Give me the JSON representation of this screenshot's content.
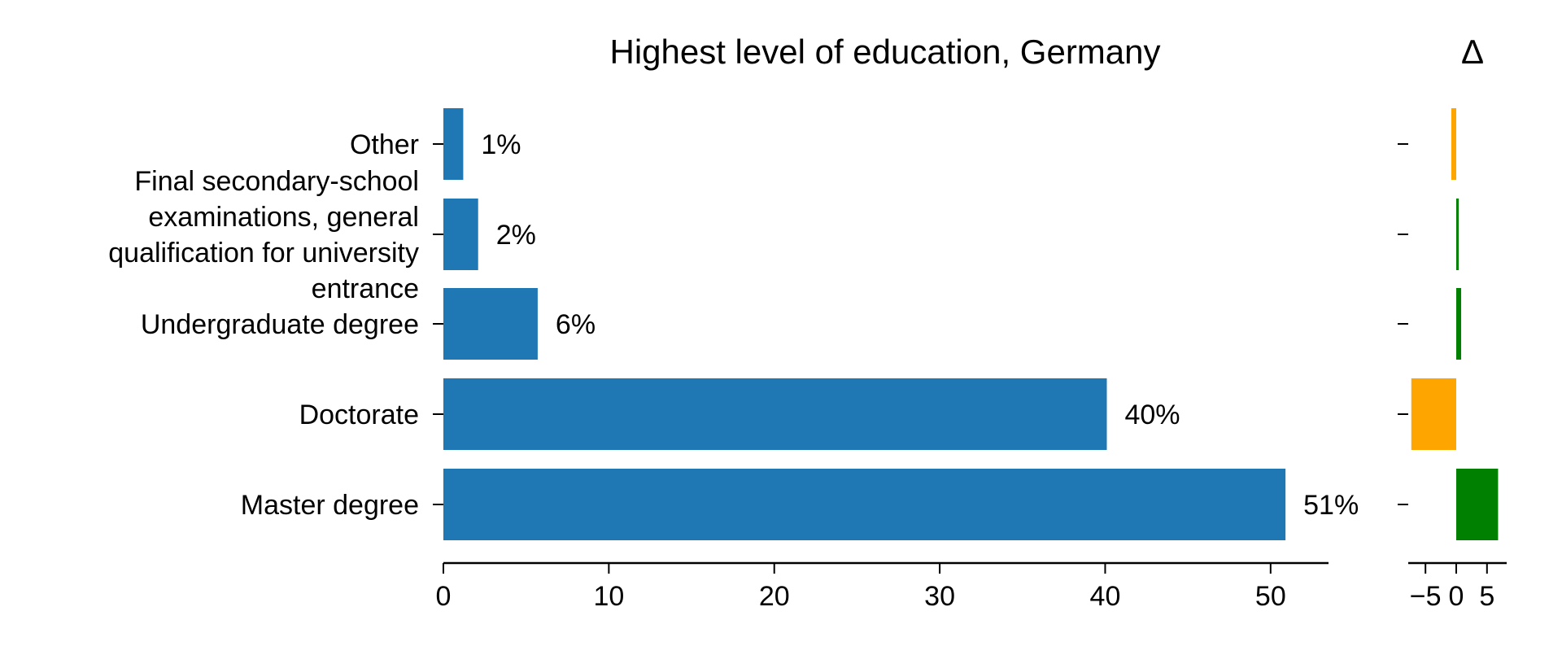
{
  "chart_data": [
    {
      "type": "bar",
      "orientation": "horizontal",
      "title": "Highest level of education, Germany",
      "categories": [
        "Master degree",
        "Doctorate",
        "Undergraduate degree",
        "Final secondary-school examinations, general qualification for university entrance",
        "Other"
      ],
      "category_lines": [
        [
          "Master degree"
        ],
        [
          "Doctorate"
        ],
        [
          "Undergraduate degree"
        ],
        [
          "Final secondary-school",
          "examinations, general",
          "qualification for university",
          "entrance"
        ],
        [
          "Other"
        ]
      ],
      "values": [
        50.9,
        40.1,
        5.7,
        2.1,
        1.2
      ],
      "value_labels": [
        "51%",
        "40%",
        "6%",
        "2%",
        "1%"
      ],
      "xlim": [
        0,
        53.5
      ],
      "xticks": [
        0,
        10,
        20,
        30,
        40,
        50
      ],
      "xtick_labels": [
        "0",
        "10",
        "20",
        "30",
        "40",
        "50"
      ],
      "grid": false,
      "bar_color": "#1f77b4"
    },
    {
      "type": "bar",
      "orientation": "horizontal",
      "title": "Δ",
      "categories": [
        "Master degree",
        "Doctorate",
        "Undergraduate degree",
        "Final secondary-school examinations, general qualification for university entrance",
        "Other"
      ],
      "values": [
        6.8,
        -7.3,
        0.8,
        0.4,
        -0.8
      ],
      "xlim": [
        -7.8,
        8.2
      ],
      "xticks": [
        -5,
        0,
        5
      ],
      "xtick_labels": [
        "−5",
        "0",
        "5"
      ],
      "grid": false,
      "positive_color": "#008000",
      "negative_color": "#ffa500"
    }
  ]
}
